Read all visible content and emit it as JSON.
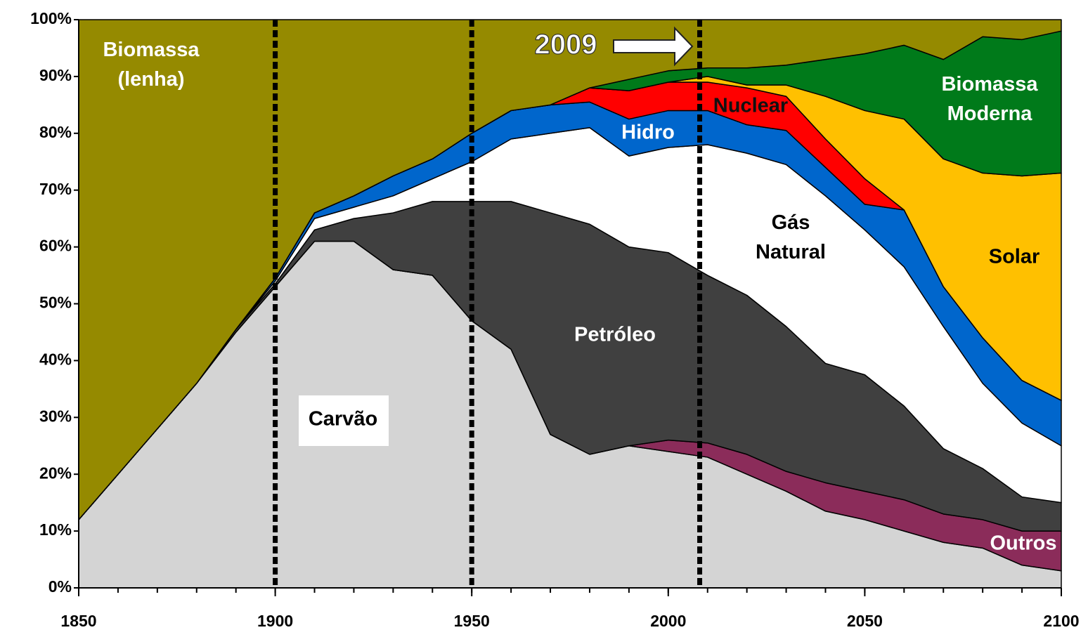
{
  "chart_data": {
    "type": "stacked_area",
    "x": [
      1850,
      1860,
      1870,
      1880,
      1890,
      1900,
      1910,
      1920,
      1930,
      1940,
      1950,
      1960,
      1970,
      1980,
      1990,
      2000,
      2010,
      2020,
      2030,
      2040,
      2050,
      2060,
      2070,
      2080,
      2090,
      2100
    ],
    "series": [
      {
        "name": "Carvão",
        "color": "#d4d4d4",
        "values": [
          12,
          20,
          28,
          36,
          45,
          53,
          61,
          61,
          56,
          55,
          47,
          42,
          27,
          23.5,
          25,
          24,
          23,
          20,
          17,
          13.5,
          12,
          10,
          8,
          7,
          4,
          3
        ]
      },
      {
        "name": "Outros",
        "color": "#8b2c5a",
        "values": [
          0,
          0,
          0,
          0,
          0,
          0,
          0,
          0,
          0,
          0,
          0,
          0,
          0,
          0,
          0,
          2,
          2.5,
          3.5,
          3.5,
          5,
          5,
          5.5,
          5,
          5,
          6,
          7
        ]
      },
      {
        "name": "Petróleo",
        "color": "#404040",
        "values": [
          0,
          0,
          0,
          0,
          0.5,
          0.5,
          2,
          4,
          10,
          13,
          21,
          26,
          39,
          40.5,
          35,
          33,
          29.5,
          28,
          25.5,
          21,
          20.5,
          16.5,
          11.5,
          9,
          6,
          5
        ]
      },
      {
        "name": "Gás Natural",
        "color": "#ffffff",
        "values": [
          0,
          0,
          0,
          0,
          0,
          0.5,
          2,
          2,
          3,
          4,
          7,
          11,
          14,
          17,
          16,
          18.5,
          23,
          25,
          28.5,
          29.5,
          25.5,
          24.5,
          21.5,
          15,
          13,
          10
        ]
      },
      {
        "name": "Hidro",
        "color": "#0066cc",
        "values": [
          0,
          0,
          0,
          0,
          0,
          0.5,
          1,
          2,
          3.5,
          3.5,
          5,
          5,
          5,
          4.5,
          6.5,
          6.5,
          6,
          5,
          6,
          5,
          4.5,
          10,
          7,
          8,
          7.5,
          8
        ]
      },
      {
        "name": "Nuclear",
        "color": "#ff0000",
        "values": [
          0,
          0,
          0,
          0,
          0,
          0,
          0,
          0,
          0,
          0,
          0,
          0,
          0,
          2.5,
          5,
          5,
          5,
          6.5,
          6,
          5,
          4.5,
          0,
          0,
          0,
          0,
          0
        ]
      },
      {
        "name": "Solar",
        "color": "#ffc000",
        "values": [
          0,
          0,
          0,
          0,
          0,
          0,
          0,
          0,
          0,
          0,
          0,
          0,
          0,
          0,
          0,
          0,
          1,
          0.5,
          2,
          7.5,
          12,
          16,
          22.5,
          29,
          36,
          40
        ]
      },
      {
        "name": "Biomassa Moderna",
        "color": "#007a1a",
        "values": [
          0,
          0,
          0,
          0,
          0,
          0,
          0,
          0,
          0,
          0,
          0,
          0,
          0,
          0,
          2,
          2,
          1.5,
          3,
          3.5,
          6.5,
          10,
          13,
          17.5,
          24,
          24,
          25
        ]
      },
      {
        "name": "Biomassa (lenha)",
        "color": "#958a00",
        "values": [
          88,
          80,
          72,
          64,
          54.5,
          45.5,
          34,
          31,
          27.5,
          24.5,
          20,
          16,
          15,
          12,
          10.5,
          9,
          8.5,
          8.5,
          8,
          7,
          6,
          4.5,
          7,
          3,
          3.5,
          2
        ]
      }
    ],
    "xlim": [
      1850,
      2100
    ],
    "xticks": [
      1850,
      1900,
      1950,
      2000,
      2050,
      2100
    ],
    "ylim": [
      0,
      100
    ],
    "yticks": [
      {
        "value": 0,
        "label": "0%"
      },
      {
        "value": 10,
        "label": "10%"
      },
      {
        "value": 20,
        "label": "20%"
      },
      {
        "value": 30,
        "label": "30%"
      },
      {
        "value": 40,
        "label": "40%"
      },
      {
        "value": 50,
        "label": "50%"
      },
      {
        "value": 60,
        "label": "60%"
      },
      {
        "value": 70,
        "label": "70%"
      },
      {
        "value": 80,
        "label": "80%"
      },
      {
        "value": 90,
        "label": "90%"
      },
      {
        "value": 100,
        "label": "100%"
      }
    ],
    "reference_lines": [
      1900,
      1950,
      2008
    ],
    "annotation": "2009"
  }
}
